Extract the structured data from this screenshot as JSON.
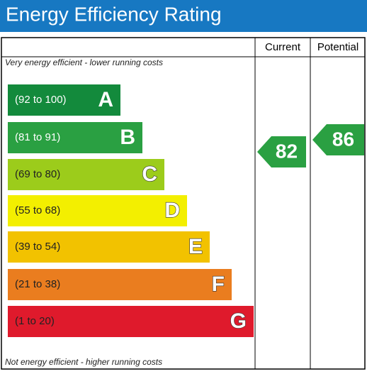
{
  "header": {
    "title": "Energy Efficiency Rating"
  },
  "table": {
    "headers": [
      "Current",
      "Potential"
    ],
    "top_note": "Very energy efficient - lower running costs",
    "bottom_note": "Not energy efficient - higher running costs",
    "bands": [
      {
        "range": "(92 to 100)",
        "letter": "A",
        "color": "#138a3c"
      },
      {
        "range": "(81 to 91)",
        "letter": "B",
        "color": "#2aa042"
      },
      {
        "range": "(69 to 80)",
        "letter": "C",
        "color": "#9ccc1b"
      },
      {
        "range": "(55 to 68)",
        "letter": "D",
        "color": "#f3ef00"
      },
      {
        "range": "(39 to 54)",
        "letter": "E",
        "color": "#f2c200"
      },
      {
        "range": "(21 to 38)",
        "letter": "F",
        "color": "#ea7d1f"
      },
      {
        "range": "(1 to 20)",
        "letter": "G",
        "color": "#df1a2c"
      }
    ],
    "current": {
      "value": 82,
      "color": "#2aa042"
    },
    "potential": {
      "value": 86,
      "color": "#2aa042"
    }
  }
}
